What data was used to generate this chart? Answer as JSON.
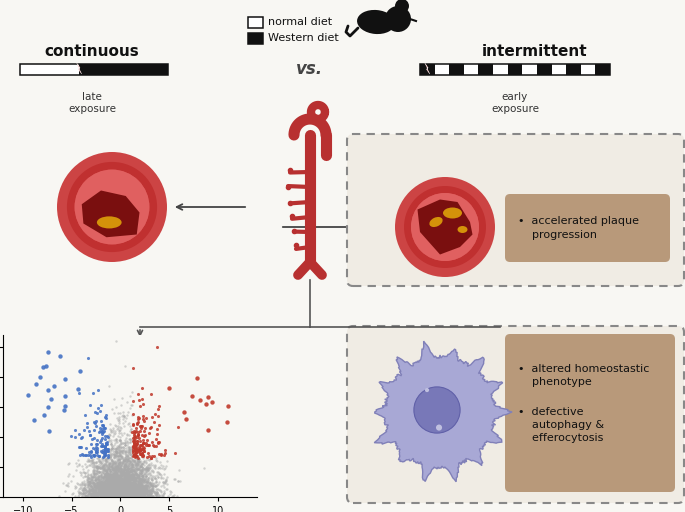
{
  "bg_color": "#f8f7f3",
  "title_left": "continuous",
  "title_right": "intermittent",
  "vs_text": "vs.",
  "legend_normal": "normal diet",
  "legend_western": "Western diet",
  "late_exposure": "late\nexposure",
  "early_exposure": "early\nexposure",
  "box1_text": "•  accelerated plaque\n    progression",
  "box2_text": "•  altered homeostastic\n    phenotype\n\n•  defective\n    autophagy &\n    efferocytosis",
  "lightning_color": "#d42020",
  "artery_color": "#b83030",
  "artery_color2": "#c03838",
  "outer_ring": "#cc4444",
  "mid_ring": "#c03030",
  "inner_lumen": "#e06060",
  "lumen_bright": "#e88888",
  "plaque_dark": "#7a0f0f",
  "plaque_yellow": "#d4920a",
  "macrophage_outer": "#a0a0d8",
  "macrophage_body": "#a8a8d5",
  "macrophage_nucleus": "#7878b8",
  "box_fill": "#b8997a",
  "box_bg": "#f0ece4",
  "dashed_color": "#888888",
  "volcano_blue": "#4472c4",
  "volcano_red": "#c0392b",
  "volcano_gray": "#aaaaaa"
}
